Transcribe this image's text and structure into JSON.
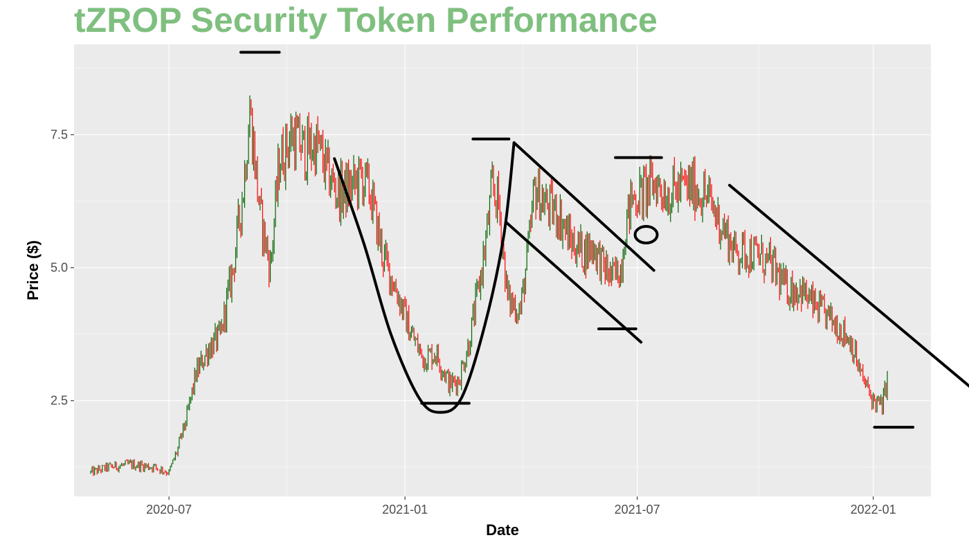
{
  "chart_data": {
    "type": "candlestick",
    "title": "tZROP Security Token Performance",
    "xlabel": "Date",
    "ylabel": "Price ($)",
    "x_ticks": [
      "2020-07",
      "2021-01",
      "2021-07",
      "2022-01"
    ],
    "y_ticks": [
      2.5,
      5.0,
      7.5
    ],
    "y_tick_labels": [
      "2.5",
      "5.0",
      "7.5"
    ],
    "ylim": [
      0.7,
      9.2
    ],
    "xlim": [
      "2020-04-18",
      "2022-02-15"
    ],
    "grid": true,
    "colors": {
      "up": "#006400",
      "down": "#ff0000",
      "panel": "#ebebeb",
      "grid": "#ffffff",
      "title": "#7fbf7f",
      "annotation": "#000000"
    },
    "price_anchors": [
      [
        "2020-05-01",
        1.15
      ],
      [
        "2020-05-15",
        1.25
      ],
      [
        "2020-06-01",
        1.3
      ],
      [
        "2020-06-20",
        1.25
      ],
      [
        "2020-07-01",
        1.15
      ],
      [
        "2020-07-08",
        1.6
      ],
      [
        "2020-07-15",
        2.2
      ],
      [
        "2020-07-22",
        3.0
      ],
      [
        "2020-08-01",
        3.5
      ],
      [
        "2020-08-10",
        3.7
      ],
      [
        "2020-08-20",
        5.0
      ],
      [
        "2020-08-28",
        6.5
      ],
      [
        "2020-09-02",
        8.0
      ],
      [
        "2020-09-10",
        6.0
      ],
      [
        "2020-09-18",
        5.0
      ],
      [
        "2020-09-25",
        7.0
      ],
      [
        "2020-10-05",
        7.5
      ],
      [
        "2020-10-15",
        7.2
      ],
      [
        "2020-10-25",
        7.3
      ],
      [
        "2020-11-01",
        6.8
      ],
      [
        "2020-11-10",
        6.4
      ],
      [
        "2020-11-20",
        6.5
      ],
      [
        "2020-11-28",
        6.7
      ],
      [
        "2020-12-05",
        6.4
      ],
      [
        "2020-12-15",
        5.2
      ],
      [
        "2020-12-25",
        4.6
      ],
      [
        "2021-01-05",
        3.8
      ],
      [
        "2021-01-15",
        3.3
      ],
      [
        "2021-01-25",
        3.4
      ],
      [
        "2021-02-05",
        2.8
      ],
      [
        "2021-02-12",
        2.9
      ],
      [
        "2021-02-20",
        3.6
      ],
      [
        "2021-02-28",
        4.7
      ],
      [
        "2021-03-05",
        5.5
      ],
      [
        "2021-03-10",
        6.5
      ],
      [
        "2021-03-15",
        6.2
      ],
      [
        "2021-03-22",
        4.4
      ],
      [
        "2021-04-01",
        4.2
      ],
      [
        "2021-04-08",
        5.5
      ],
      [
        "2021-04-12",
        6.5
      ],
      [
        "2021-04-20",
        6.2
      ],
      [
        "2021-05-01",
        6.0
      ],
      [
        "2021-05-10",
        5.5
      ],
      [
        "2021-05-20",
        5.3
      ],
      [
        "2021-05-28",
        5.4
      ],
      [
        "2021-06-05",
        5.0
      ],
      [
        "2021-06-12",
        4.8
      ],
      [
        "2021-06-18",
        5.0
      ],
      [
        "2021-06-22",
        5.8
      ],
      [
        "2021-06-27",
        6.3
      ],
      [
        "2021-07-05",
        6.4
      ],
      [
        "2021-07-15",
        6.6
      ],
      [
        "2021-07-25",
        6.4
      ],
      [
        "2021-08-05",
        6.5
      ],
      [
        "2021-08-15",
        6.5
      ],
      [
        "2021-08-25",
        6.3
      ],
      [
        "2021-09-05",
        5.8
      ],
      [
        "2021-09-15",
        5.3
      ],
      [
        "2021-09-25",
        5.3
      ],
      [
        "2021-10-05",
        5.2
      ],
      [
        "2021-10-15",
        5.0
      ],
      [
        "2021-10-25",
        4.6
      ],
      [
        "2021-11-05",
        4.6
      ],
      [
        "2021-11-15",
        4.3
      ],
      [
        "2021-11-25",
        4.1
      ],
      [
        "2021-12-05",
        3.9
      ],
      [
        "2021-12-15",
        3.6
      ],
      [
        "2021-12-22",
        3.0
      ],
      [
        "2022-01-01",
        2.5
      ],
      [
        "2022-01-08",
        2.4
      ],
      [
        "2022-01-12",
        2.9
      ]
    ],
    "annotations": {
      "horizontal_levels": [
        {
          "from": "2020-08-26",
          "to": "2020-09-25",
          "y": 9.05
        },
        {
          "from": "2021-01-14",
          "to": "2021-02-20",
          "y": 2.45
        },
        {
          "from": "2021-02-23",
          "to": "2021-03-23",
          "y": 7.42
        },
        {
          "from": "2021-06-01",
          "to": "2021-06-30",
          "y": 3.85
        },
        {
          "from": "2021-06-14",
          "to": "2021-07-20",
          "y": 7.07
        },
        {
          "from": "2022-01-02",
          "to": "2022-02-01",
          "y": 2.0
        }
      ],
      "trend_lines": [
        {
          "from": [
            "2021-03-27",
            7.35
          ],
          "to": [
            "2021-07-14",
            4.95
          ]
        },
        {
          "from": [
            "2021-03-21",
            5.85
          ],
          "to": [
            "2021-07-04",
            3.6
          ]
        },
        {
          "from": [
            "2021-09-11",
            6.55
          ],
          "to": [
            "2022-03-18",
            2.75
          ]
        }
      ],
      "cup_curve": [
        [
          "2020-11-07",
          7.05
        ],
        [
          "2020-11-30",
          5.45
        ],
        [
          "2020-12-21",
          3.75
        ],
        [
          "2021-01-12",
          2.55
        ],
        [
          "2021-01-28",
          2.28
        ],
        [
          "2021-02-14",
          2.55
        ],
        [
          "2021-03-04",
          3.9
        ],
        [
          "2021-03-19",
          5.6
        ],
        [
          "2021-03-27",
          7.35
        ]
      ],
      "circle": {
        "center": [
          "2021-07-08",
          5.62
        ],
        "label": ""
      }
    }
  }
}
